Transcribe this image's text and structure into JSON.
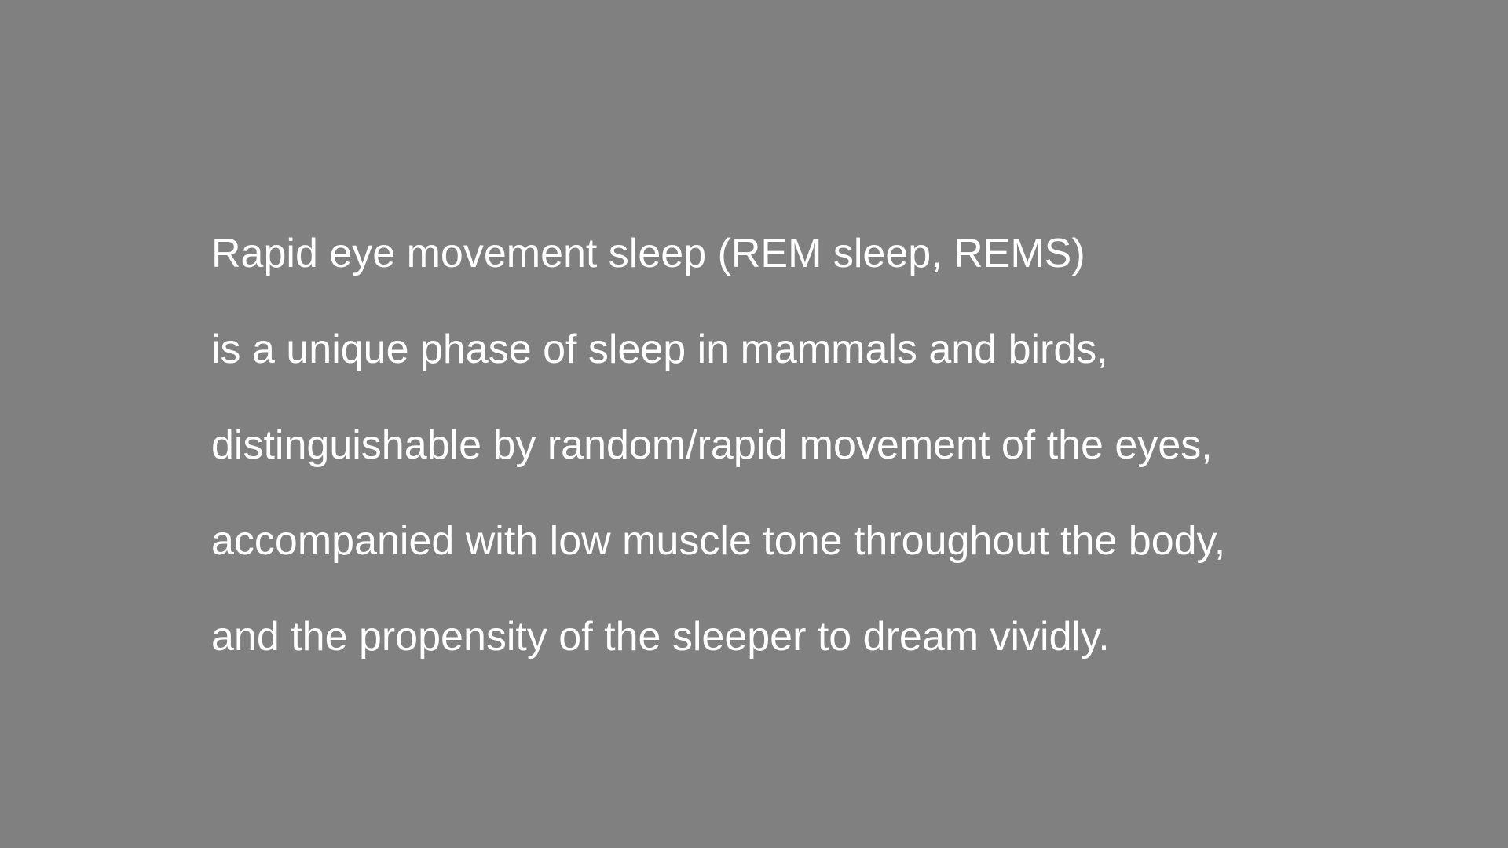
{
  "slide": {
    "background_color": "#808080",
    "text_color": "#ffffff",
    "lines": [
      "Rapid eye movement sleep (REM sleep, REMS)",
      "is a unique phase of sleep in mammals and birds,",
      "distinguishable by random/rapid movement of the eyes,",
      "accompanied with low muscle tone throughout the body,",
      "and the propensity of the sleeper to dream vividly."
    ]
  }
}
